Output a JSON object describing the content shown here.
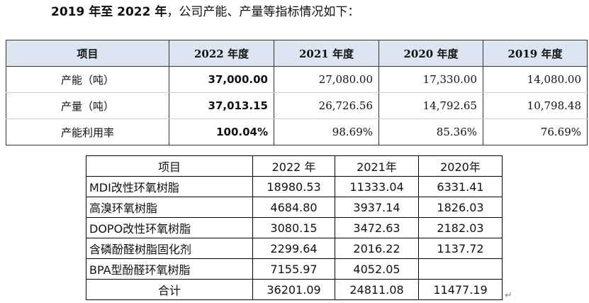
{
  "intro": {
    "bold": "2019 年至 2022 年",
    "rest": "，公司产能、产量等指标情况如下："
  },
  "table1": {
    "headers": [
      "项目",
      "2022 年度",
      "2021 年度",
      "2020 年度",
      "2019 年度"
    ],
    "rows": [
      [
        "产能（吨）",
        "37,000.00",
        "27,080.00",
        "17,330.00",
        "14,080.00"
      ],
      [
        "产量（吨）",
        "37,013.15",
        "26,726.56",
        "14,792.65",
        "10,798.48"
      ],
      [
        "产能利用率",
        "100.04%",
        "98.69%",
        "85.36%",
        "76.69%"
      ]
    ]
  },
  "table2": {
    "headers": [
      "项目",
      "2022 年",
      "2021年",
      "2020年"
    ],
    "rows": [
      [
        "MDI改性环氧树脂",
        "18980.53",
        "11333.04",
        "6331.41"
      ],
      [
        "高溴环氧树脂",
        "4684.80",
        "3937.14",
        "1826.03"
      ],
      [
        "DOPO改性环氧树脂",
        "3080.15",
        "3472.63",
        "2182.03"
      ],
      [
        "含磷酚醛树脂固化剂",
        "2299.64",
        "2016.22",
        "1137.72"
      ],
      [
        "BPA型酚醛环氧树脂",
        "7155.97",
        "4052.05",
        ""
      ],
      [
        "合计",
        "36201.09",
        "24811.08",
        "11477.19"
      ]
    ]
  },
  "return_mark": "↵"
}
